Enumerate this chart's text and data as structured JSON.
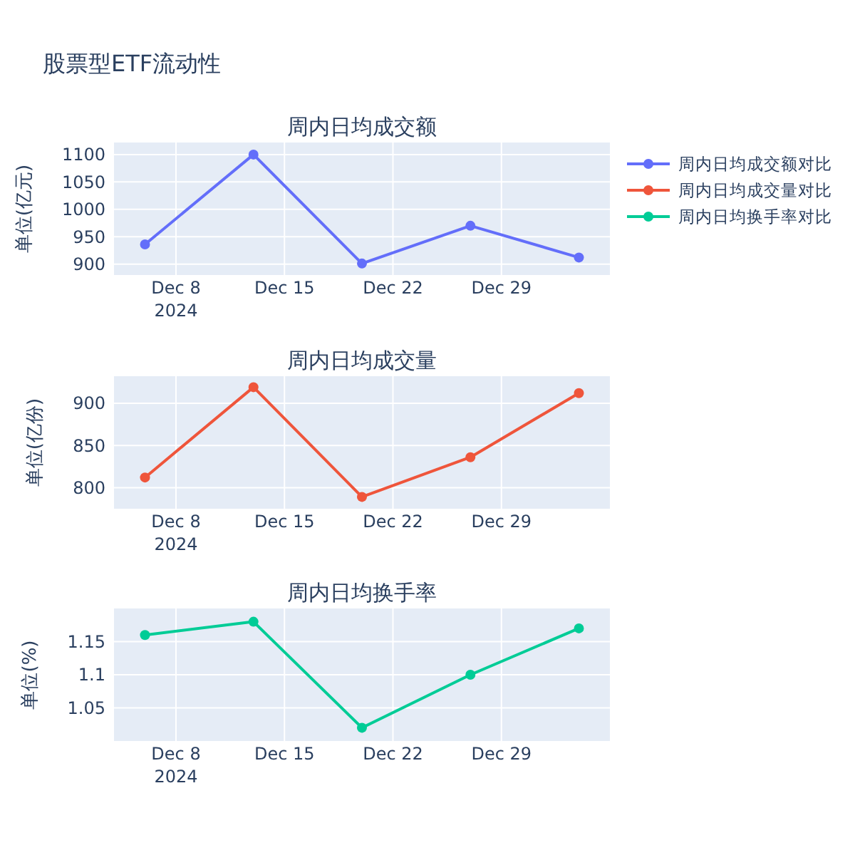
{
  "chart_data": [
    {
      "type": "line",
      "title": "周内日均成交额",
      "ylabel": "单位(亿元)",
      "annotations": [
        "股票型ETF流动性"
      ],
      "x": [
        "2024-12-06",
        "2024-12-13",
        "2024-12-20",
        "2024-12-27",
        "2025-01-03"
      ],
      "series": [
        {
          "name": "周内日均成交额对比",
          "color": "#636efa",
          "values": [
            936,
            1100,
            901,
            970,
            912
          ]
        }
      ],
      "xlim": [
        "2024-12-04",
        "2025-01-05"
      ],
      "xticks": [
        {
          "value": "2024-12-08",
          "label": "Dec 8\n2024"
        },
        {
          "value": "2024-12-15",
          "label": "Dec 15"
        },
        {
          "value": "2024-12-22",
          "label": "Dec 22"
        },
        {
          "value": "2024-12-29",
          "label": "Dec 29"
        }
      ],
      "ylim": [
        880,
        1122
      ],
      "yticks": [
        900,
        950,
        1000,
        1050,
        1100
      ],
      "grid": true,
      "legend": "top right",
      "marker": "circle",
      "line_style": "solid"
    },
    {
      "type": "line",
      "title": "周内日均成交量",
      "ylabel": "单位(亿份)",
      "x": [
        "2024-12-06",
        "2024-12-13",
        "2024-12-20",
        "2024-12-27",
        "2025-01-03"
      ],
      "series": [
        {
          "name": "周内日均成交量对比",
          "color": "#ef553b",
          "values": [
            812,
            919,
            789,
            836,
            912
          ]
        }
      ],
      "xlim": [
        "2024-12-04",
        "2025-01-05"
      ],
      "xticks": [
        {
          "value": "2024-12-08",
          "label": "Dec 8\n2024"
        },
        {
          "value": "2024-12-15",
          "label": "Dec 15"
        },
        {
          "value": "2024-12-22",
          "label": "Dec 22"
        },
        {
          "value": "2024-12-29",
          "label": "Dec 29"
        }
      ],
      "ylim": [
        775,
        932
      ],
      "yticks": [
        800,
        850,
        900
      ],
      "grid": true,
      "legend": "top right",
      "marker": "circle",
      "line_style": "solid"
    },
    {
      "type": "line",
      "title": "周内日均换手率",
      "ylabel": "单位(%)",
      "x": [
        "2024-12-06",
        "2024-12-13",
        "2024-12-20",
        "2024-12-27",
        "2025-01-03"
      ],
      "series": [
        {
          "name": "周内日均换手率对比",
          "color": "#00cc96",
          "values": [
            1.16,
            1.18,
            1.02,
            1.1,
            1.17
          ]
        }
      ],
      "xlim": [
        "2024-12-04",
        "2025-01-05"
      ],
      "xticks": [
        {
          "value": "2024-12-08",
          "label": "Dec 8\n2024"
        },
        {
          "value": "2024-12-15",
          "label": "Dec 15"
        },
        {
          "value": "2024-12-22",
          "label": "Dec 22"
        },
        {
          "value": "2024-12-29",
          "label": "Dec 29"
        }
      ],
      "ylim": [
        1.0,
        1.2
      ],
      "yticks": [
        1.05,
        1.1,
        1.15
      ],
      "grid": true,
      "legend": "top right",
      "marker": "circle",
      "line_style": "solid"
    }
  ]
}
